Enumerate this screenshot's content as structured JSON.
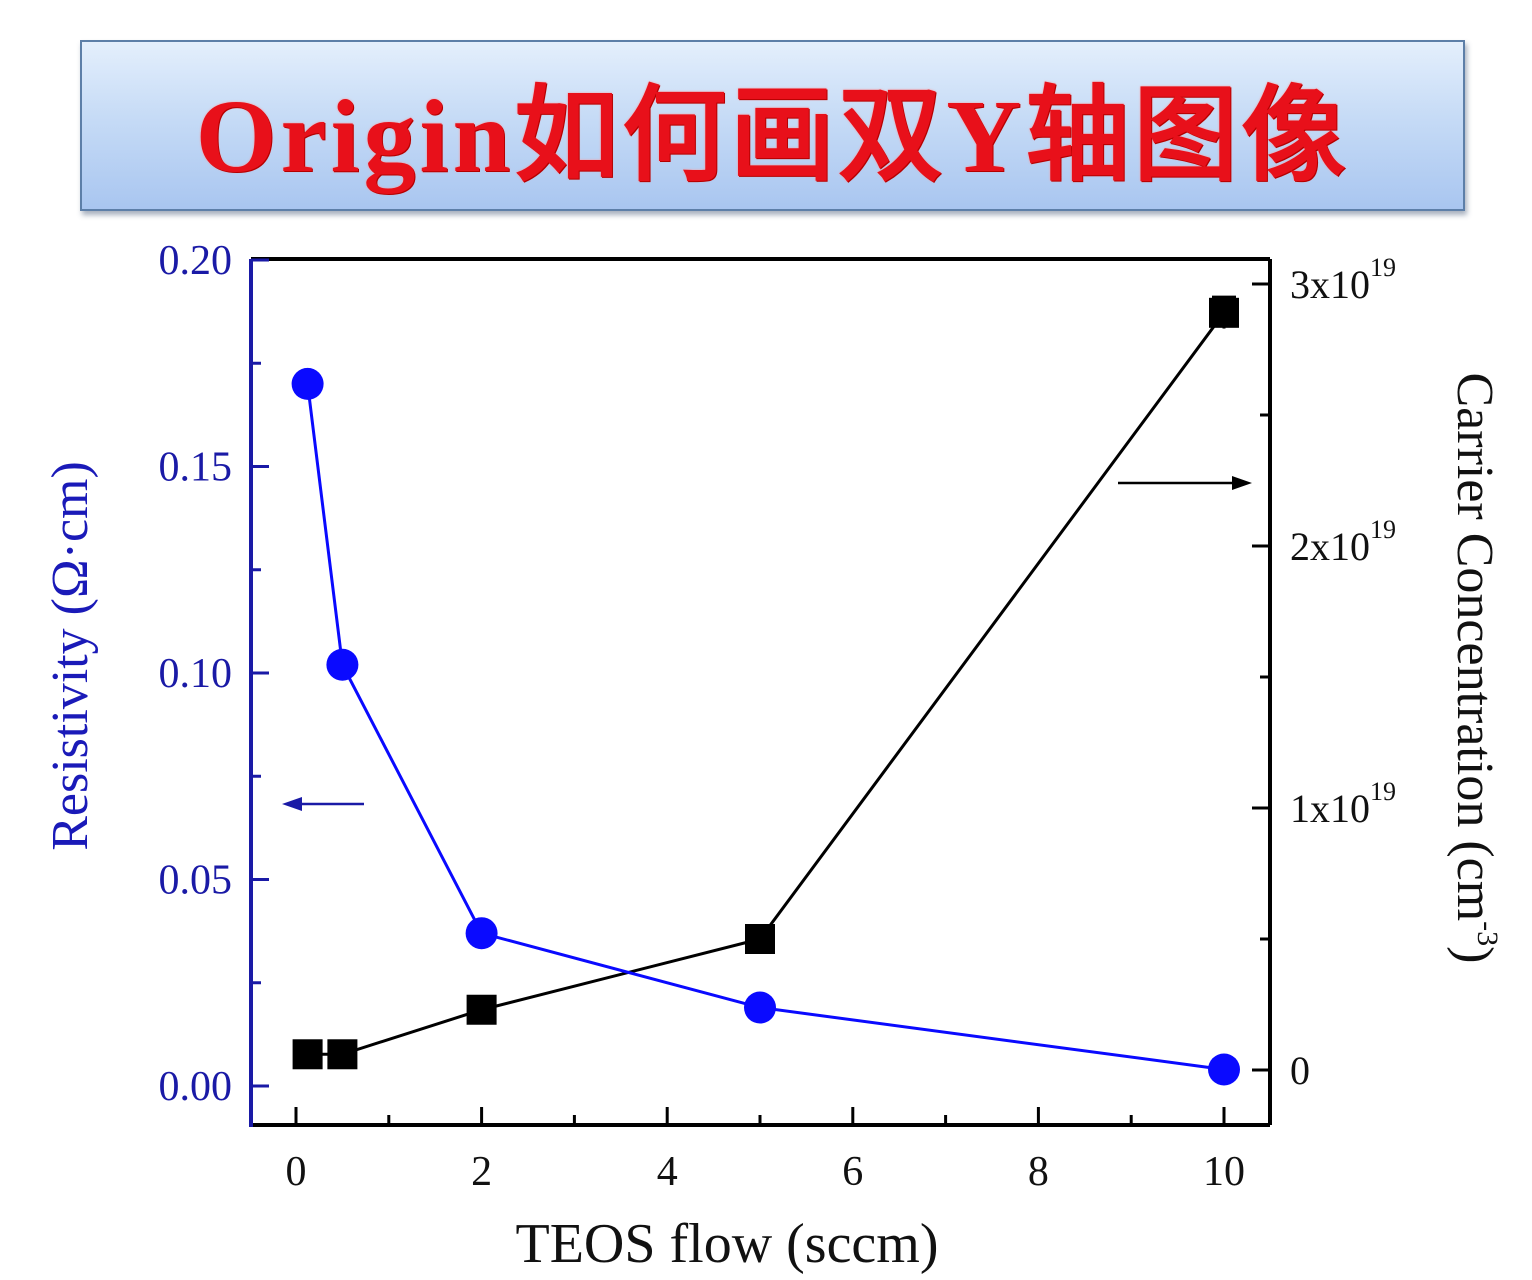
{
  "banner": {
    "title": "Origin如何画双Y轴图像"
  },
  "colors": {
    "banner_text": "#e8101a",
    "banner_bg_top": "#e4effc",
    "banner_bg_bottom": "#a9c6f0",
    "resistivity_series": "#0a0aff",
    "resistivity_axis": "#1a1aa6",
    "carrier_series": "#000000"
  },
  "chart_data": {
    "type": "line",
    "title": "",
    "xlabel": "TEOS flow (sccm)",
    "ylabel": "Resistivity (Ω·cm)",
    "y2label": "Carrier Concentration (cm-3)",
    "xlim": [
      -0.5,
      10.5
    ],
    "ylim": [
      -0.01,
      0.2
    ],
    "y2lim": [
      -2e+18,
      3.1e+19
    ],
    "x_ticks": [
      "0",
      "2",
      "4",
      "6",
      "8",
      "10"
    ],
    "y_ticks": [
      "0.00",
      "0.05",
      "0.10",
      "0.15",
      "0.20"
    ],
    "y2_ticks": [
      {
        "base": "0",
        "exp": ""
      },
      {
        "base": "1x10",
        "exp": "19"
      },
      {
        "base": "2x10",
        "exp": "19"
      },
      {
        "base": "3x10",
        "exp": "19"
      }
    ],
    "grid": false,
    "legend": "none (axis arrows indicate series)",
    "annotations": [
      {
        "type": "arrow",
        "direction": "left",
        "target_axis": "left",
        "color": "#1a1ab8"
      },
      {
        "type": "arrow",
        "direction": "right",
        "target_axis": "right",
        "color": "#000000"
      }
    ],
    "series": [
      {
        "name": "Resistivity",
        "axis": "left",
        "marker": "circle",
        "color": "#0a0aff",
        "x": [
          0.125,
          0.5,
          2,
          5,
          10
        ],
        "values": [
          0.17,
          0.102,
          0.037,
          0.019,
          0.004
        ]
      },
      {
        "name": "Carrier Concentration",
        "axis": "right",
        "marker": "square",
        "color": "#000000",
        "x": [
          0.125,
          0.5,
          2,
          5,
          10
        ],
        "values": [
          6e+17,
          6e+17,
          2.3e+18,
          5e+18,
          2.89e+19
        ],
        "error_bars": [
          2e+17,
          2e+17,
          3e+17,
          2e+17,
          6e+17
        ]
      }
    ]
  }
}
